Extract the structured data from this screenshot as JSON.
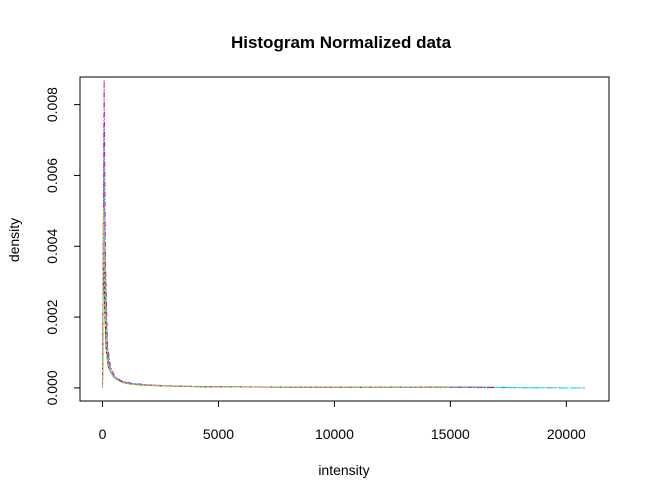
{
  "chart_data": {
    "type": "line",
    "title": "Histogram Normalized data",
    "xlabel": "intensity",
    "ylabel": "density",
    "xlim": [
      -970,
      21840
    ],
    "ylim": [
      -0.00037,
      0.00878
    ],
    "x_ticks": [
      0,
      5000,
      10000,
      15000,
      20000
    ],
    "x_tick_labels": [
      "0",
      "5000",
      "10000",
      "15000",
      "20000"
    ],
    "y_ticks": [
      0.0,
      0.002,
      0.004,
      0.006,
      0.008
    ],
    "y_tick_labels": [
      "0.000",
      "0.002",
      "0.004",
      "0.006",
      "0.008"
    ],
    "grid": false,
    "legend": "none",
    "series": [
      {
        "color": "#000000",
        "dash": "none",
        "points": [
          [
            0,
            0.0
          ],
          [
            40,
            0.0041
          ],
          [
            90,
            0.0024
          ],
          [
            160,
            0.0011
          ],
          [
            250,
            0.0006
          ],
          [
            400,
            0.0004
          ],
          [
            600,
            0.00025
          ],
          [
            900,
            0.00015
          ],
          [
            1300,
            0.0001
          ],
          [
            2000,
            7e-05
          ],
          [
            3000,
            5e-05
          ],
          [
            4500,
            3e-05
          ],
          [
            6000,
            3e-05
          ],
          [
            8000,
            2e-05
          ],
          [
            10000,
            2e-05
          ],
          [
            12000,
            2e-05
          ],
          [
            14000,
            2e-05
          ],
          [
            16000,
            2e-05
          ],
          [
            17600,
            1e-05
          ]
        ]
      },
      {
        "color": "#DF536B",
        "dash": "4,3",
        "points": [
          [
            0,
            0.0
          ],
          [
            60,
            0.0068
          ],
          [
            120,
            0.003
          ],
          [
            200,
            0.0011
          ],
          [
            320,
            0.0005
          ],
          [
            500,
            0.0003
          ],
          [
            800,
            0.00018
          ],
          [
            1200,
            0.00012
          ],
          [
            2000,
            8e-05
          ],
          [
            3000,
            5e-05
          ],
          [
            5000,
            3e-05
          ],
          [
            8000,
            2e-05
          ],
          [
            11000,
            2e-05
          ],
          [
            14000,
            2e-05
          ],
          [
            17000,
            1e-05
          ]
        ]
      },
      {
        "color": "#61D04F",
        "dash": "2,2",
        "points": [
          [
            0,
            0.0
          ],
          [
            50,
            0.0058
          ],
          [
            110,
            0.0026
          ],
          [
            190,
            0.001
          ],
          [
            300,
            0.0005
          ],
          [
            480,
            0.0003
          ],
          [
            750,
            0.00018
          ],
          [
            1100,
            0.00012
          ],
          [
            1800,
            8e-05
          ],
          [
            2800,
            5e-05
          ],
          [
            4500,
            3e-05
          ],
          [
            7000,
            2e-05
          ],
          [
            10000,
            2e-05
          ],
          [
            13000,
            2e-05
          ],
          [
            16500,
            1e-05
          ]
        ]
      },
      {
        "color": "#2297E6",
        "dash": "6,2,2,2",
        "points": [
          [
            0,
            0.0
          ],
          [
            55,
            0.0062
          ],
          [
            115,
            0.0028
          ],
          [
            195,
            0.0011
          ],
          [
            310,
            0.0005
          ],
          [
            490,
            0.0003
          ],
          [
            760,
            0.00019
          ],
          [
            1150,
            0.00012
          ],
          [
            1900,
            8e-05
          ],
          [
            3000,
            5e-05
          ],
          [
            5000,
            3e-05
          ],
          [
            8000,
            2e-05
          ],
          [
            12000,
            2e-05
          ],
          [
            16000,
            1e-05
          ],
          [
            20800,
            0.0
          ]
        ]
      },
      {
        "color": "#28E2E5",
        "dash": "8,3",
        "points": [
          [
            0,
            0.0
          ],
          [
            65,
            0.0075
          ],
          [
            125,
            0.0032
          ],
          [
            210,
            0.0012
          ],
          [
            330,
            0.0006
          ],
          [
            510,
            0.00032
          ],
          [
            780,
            0.0002
          ],
          [
            1200,
            0.00013
          ],
          [
            2000,
            8e-05
          ],
          [
            3200,
            5e-05
          ],
          [
            5500,
            3e-05
          ],
          [
            9000,
            2e-05
          ],
          [
            13000,
            2e-05
          ],
          [
            17000,
            1e-05
          ],
          [
            20800,
            0.0
          ]
        ]
      },
      {
        "color": "#CD0BBC",
        "dash": "5,2,1,2",
        "points": [
          [
            0,
            0.0
          ],
          [
            70,
            0.0087
          ],
          [
            130,
            0.0035
          ],
          [
            215,
            0.0012
          ],
          [
            340,
            0.0006
          ],
          [
            520,
            0.00033
          ],
          [
            800,
            0.0002
          ],
          [
            1250,
            0.00013
          ],
          [
            2100,
            8e-05
          ],
          [
            3300,
            5e-05
          ],
          [
            5500,
            3e-05
          ],
          [
            9000,
            2e-05
          ],
          [
            13000,
            2e-05
          ],
          [
            16800,
            1e-05
          ]
        ]
      },
      {
        "color": "#F5C710",
        "dash": "3,2",
        "points": [
          [
            0,
            0.0
          ],
          [
            45,
            0.005
          ],
          [
            100,
            0.0023
          ],
          [
            180,
            0.0009
          ],
          [
            290,
            0.0005
          ],
          [
            470,
            0.0003
          ],
          [
            740,
            0.00018
          ],
          [
            1100,
            0.00011
          ],
          [
            1800,
            7e-05
          ],
          [
            2900,
            5e-05
          ],
          [
            4800,
            3e-05
          ],
          [
            7500,
            2e-05
          ],
          [
            11000,
            2e-05
          ],
          [
            15000,
            1e-05
          ]
        ]
      },
      {
        "color": "#9E9E9E",
        "dash": "1,2",
        "points": [
          [
            0,
            0.0
          ],
          [
            58,
            0.0066
          ],
          [
            118,
            0.0029
          ],
          [
            200,
            0.0011
          ],
          [
            315,
            0.0005
          ],
          [
            495,
            0.0003
          ],
          [
            770,
            0.00018
          ],
          [
            1180,
            0.00012
          ],
          [
            1950,
            8e-05
          ],
          [
            3100,
            5e-05
          ],
          [
            5200,
            3e-05
          ],
          [
            8500,
            2e-05
          ],
          [
            12500,
            2e-05
          ],
          [
            16500,
            1e-05
          ]
        ]
      }
    ]
  }
}
